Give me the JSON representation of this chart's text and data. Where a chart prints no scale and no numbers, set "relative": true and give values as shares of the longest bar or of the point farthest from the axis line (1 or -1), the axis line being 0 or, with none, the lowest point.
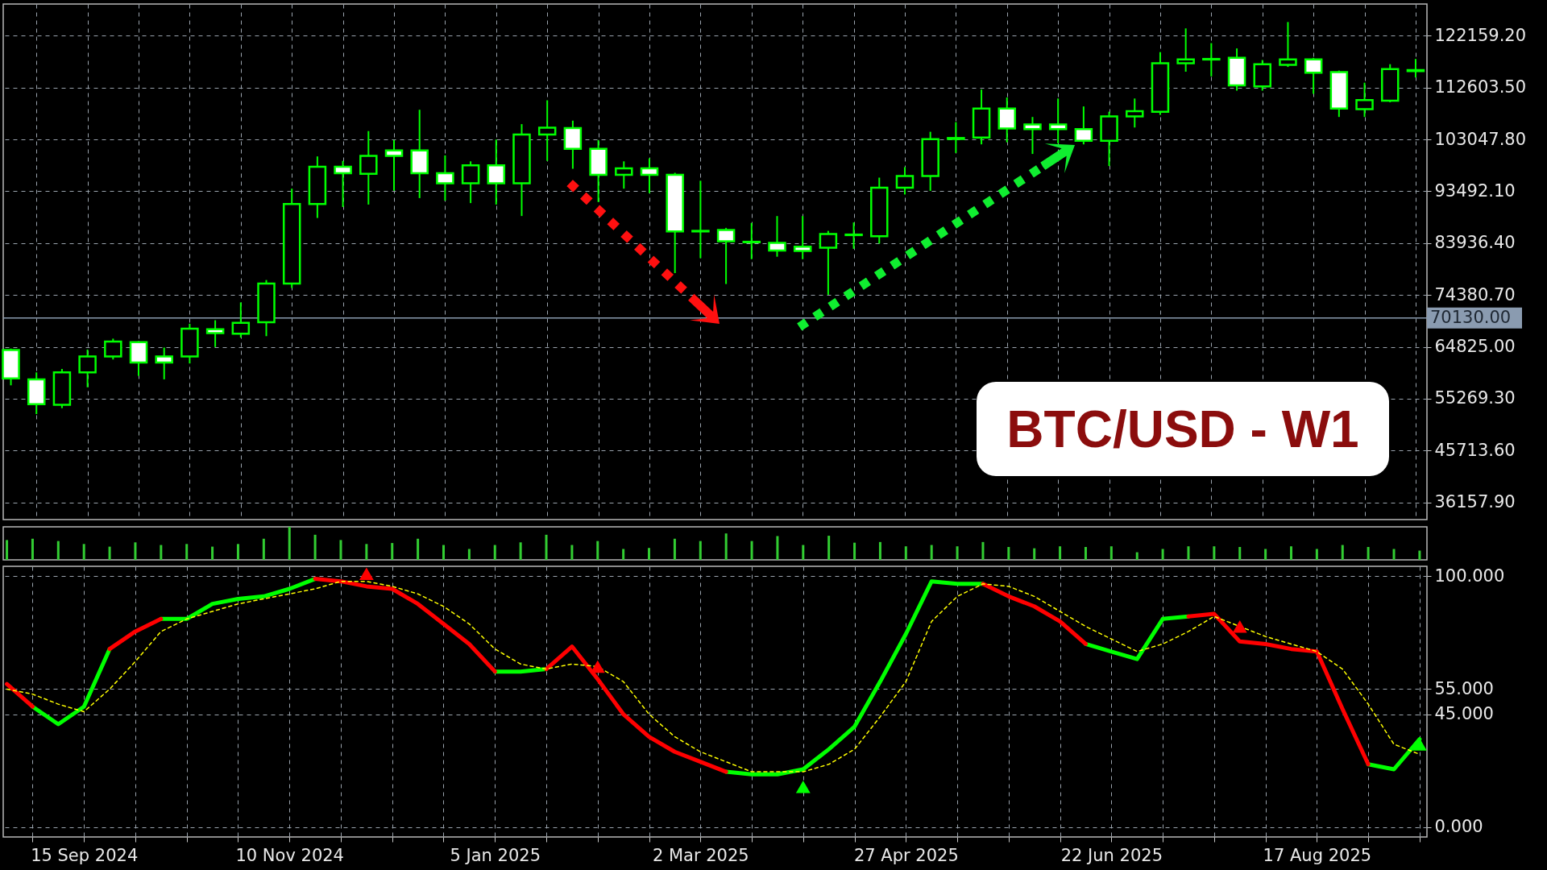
{
  "chart_data": [
    {
      "type": "candlestick",
      "title": "BTC/USD - W1",
      "color": "#00ff00",
      "tick_labels": "y",
      "grid": true,
      "x": [
        "2024-08-25",
        "2024-09-01",
        "2024-09-08",
        "2024-09-15",
        "2024-09-22",
        "2024-09-29",
        "2024-10-06",
        "2024-10-13",
        "2024-10-20",
        "2024-10-27",
        "2024-11-03",
        "2024-11-10",
        "2024-11-17",
        "2024-11-24",
        "2024-12-01",
        "2024-12-08",
        "2024-12-15",
        "2024-12-22",
        "2024-12-29",
        "2025-01-05",
        "2025-01-12",
        "2025-01-19",
        "2025-01-26",
        "2025-02-02",
        "2025-02-09",
        "2025-02-16",
        "2025-02-23",
        "2025-03-02",
        "2025-03-09",
        "2025-03-16",
        "2025-03-23",
        "2025-03-30",
        "2025-04-06",
        "2025-04-13",
        "2025-04-20",
        "2025-04-27",
        "2025-05-04",
        "2025-05-11",
        "2025-05-18",
        "2025-05-25",
        "2025-06-01",
        "2025-06-08",
        "2025-06-15",
        "2025-06-22",
        "2025-06-29",
        "2025-07-06",
        "2025-07-13",
        "2025-07-20",
        "2025-07-27",
        "2025-08-03",
        "2025-08-10",
        "2025-08-17",
        "2025-08-24",
        "2025-08-31",
        "2025-09-07",
        "2025-09-14"
      ],
      "ohlc": [
        [
          64240,
          64510,
          57740,
          59020
        ],
        [
          58840,
          60120,
          52440,
          54270
        ],
        [
          54170,
          60760,
          53530,
          60120
        ],
        [
          60120,
          64330,
          57380,
          63050
        ],
        [
          63050,
          66340,
          62500,
          65790
        ],
        [
          65700,
          65890,
          59480,
          61950
        ],
        [
          63050,
          64700,
          58840,
          61950
        ],
        [
          63050,
          69090,
          61770,
          68170
        ],
        [
          68080,
          69730,
          64790,
          67350
        ],
        [
          67260,
          73020,
          66530,
          69270
        ],
        [
          69360,
          77140,
          66800,
          76500
        ],
        [
          76500,
          93980,
          75680,
          91140
        ],
        [
          91140,
          99920,
          88580,
          98000
        ],
        [
          98000,
          99100,
          90590,
          96810
        ],
        [
          96720,
          104590,
          91050,
          100020
        ],
        [
          101020,
          102940,
          93610,
          100020
        ],
        [
          101020,
          108520,
          92240,
          96810
        ],
        [
          96810,
          100110,
          91780,
          94980
        ],
        [
          94980,
          99010,
          91320,
          98280
        ],
        [
          98280,
          103030,
          91050,
          94980
        ],
        [
          94980,
          105870,
          88940,
          103950
        ],
        [
          103950,
          110260,
          99100,
          105230
        ],
        [
          105140,
          106510,
          97640,
          101300
        ],
        [
          101300,
          102940,
          91510,
          96540
        ],
        [
          96540,
          99010,
          93980,
          97730
        ],
        [
          97730,
          99560,
          93150,
          96540
        ],
        [
          96540,
          96900,
          78420,
          86110
        ],
        [
          86200,
          95440,
          81170,
          86100
        ],
        [
          86380,
          86750,
          76410,
          84280
        ],
        [
          84190,
          87660,
          80980,
          84100
        ],
        [
          83970,
          88930,
          81440,
          82590
        ],
        [
          83290,
          88930,
          80980,
          82500
        ],
        [
          83090,
          86200,
          74430,
          85610
        ],
        [
          85420,
          87750,
          82890,
          85520
        ],
        [
          85230,
          96010,
          83860,
          94160
        ],
        [
          94160,
          97950,
          92900,
          96300
        ],
        [
          96300,
          104460,
          93570,
          103110
        ],
        [
          103130,
          106240,
          100560,
          103310
        ],
        [
          103400,
          112240,
          102140,
          108740
        ],
        [
          108740,
          110780,
          102520,
          105050
        ],
        [
          105820,
          107190,
          100380,
          104960
        ],
        [
          105820,
          110590,
          102320,
          104960
        ],
        [
          104960,
          109130,
          102140,
          102820
        ],
        [
          102820,
          108160,
          98150,
          107280
        ],
        [
          107280,
          110590,
          105250,
          108250
        ],
        [
          108160,
          119140,
          107570,
          117090
        ],
        [
          117090,
          123510,
          115530,
          117780
        ],
        [
          117880,
          120790,
          114670,
          117780
        ],
        [
          118080,
          119820,
          112040,
          113010
        ],
        [
          112830,
          117680,
          112040,
          116910
        ],
        [
          116800,
          124680,
          116410,
          117780
        ],
        [
          117780,
          118080,
          111450,
          115350
        ],
        [
          115440,
          115740,
          107190,
          108740
        ],
        [
          108630,
          113500,
          107190,
          110300
        ],
        [
          110190,
          116910,
          109900,
          116030
        ],
        [
          115640,
          117880,
          114470,
          115830
        ]
      ],
      "colors": [
        "#ffffff",
        "#ffffff",
        "#000000",
        "#000000",
        "#000000",
        "#ffffff",
        "#ffffff",
        "#000000",
        "#ffffff",
        "#000000",
        "#000000",
        "#000000",
        "#000000",
        "#ffffff",
        "#000000",
        "#ffffff",
        "#ffffff",
        "#ffffff",
        "#000000",
        "#ffffff",
        "#000000",
        "#000000",
        "#ffffff",
        "#ffffff",
        "#000000",
        "#ffffff",
        "#ffffff",
        "#ffffff",
        "#ffffff",
        "#ffffff",
        "#ffffff",
        "#ffffff",
        "#000000",
        "#000000",
        "#000000",
        "#000000",
        "#000000",
        "#000000",
        "#000000",
        "#ffffff",
        "#ffffff",
        "#ffffff",
        "#ffffff",
        "#000000",
        "#000000",
        "#000000",
        "#000000",
        "#ffffff",
        "#ffffff",
        "#000000",
        "#000000",
        "#ffffff",
        "#ffffff",
        "#000000",
        "#000000",
        "#000000"
      ],
      "xlim": [
        "2024-08-24",
        "2025-09-16"
      ],
      "xticks": [
        "2024-09-01",
        "2024-09-15",
        "2024-09-29",
        "2024-10-13",
        "2024-10-27",
        "2024-11-10",
        "2024-11-24",
        "2024-12-08",
        "2024-12-22",
        "2025-01-05",
        "2025-01-19",
        "2025-02-02",
        "2025-02-16",
        "2025-03-02",
        "2025-03-16",
        "2025-03-30",
        "2025-04-13",
        "2025-04-27",
        "2025-05-11",
        "2025-05-25",
        "2025-06-08",
        "2025-06-22",
        "2025-07-06",
        "2025-07-20",
        "2025-08-03",
        "2025-08-17",
        "2025-08-31",
        "2025-09-14"
      ],
      "ylim": [
        33000,
        128000
      ],
      "yticks": [
        {
          "value": 36157.9,
          "label": "36157.90"
        },
        {
          "value": 45713.6,
          "label": "45713.60"
        },
        {
          "value": 55269.3,
          "label": "55269.30"
        },
        {
          "value": 64825,
          "label": "64825.00"
        },
        {
          "value": 74380.7,
          "label": "74380.70"
        },
        {
          "value": 83936.4,
          "label": "83936.40"
        },
        {
          "value": 93492.1,
          "label": "93492.10"
        },
        {
          "value": 103047.8,
          "label": "103047.80"
        },
        {
          "value": 112603.5,
          "label": "112603.50"
        },
        {
          "value": 122159.2,
          "label": "122159.20"
        }
      ],
      "ref_lines": [
        {
          "axis": "y",
          "value": 70130,
          "label": "70130.00",
          "color": "#8a9bb0"
        }
      ]
    },
    {
      "type": "bar",
      "relative": true,
      "color": "#32cd32",
      "categories": [
        null,
        null,
        null,
        null,
        null,
        null,
        null,
        null,
        null,
        null,
        null,
        null,
        null,
        null,
        null,
        null,
        null,
        null,
        null,
        null,
        null,
        null,
        null,
        null,
        null,
        null,
        null,
        null,
        null,
        null,
        null,
        null,
        null,
        null,
        null,
        null,
        null,
        null,
        null,
        null,
        null,
        null,
        null,
        null,
        null,
        null,
        null,
        null,
        null,
        null,
        null,
        null,
        null,
        null,
        null,
        null
      ],
      "values": [
        0.6,
        0.64,
        0.57,
        0.48,
        0.4,
        0.53,
        0.45,
        0.48,
        0.4,
        0.48,
        0.64,
        1,
        0.76,
        0.6,
        0.48,
        0.51,
        0.64,
        0.45,
        0.33,
        0.45,
        0.53,
        0.76,
        0.45,
        0.57,
        0.33,
        0.36,
        0.64,
        0.57,
        0.8,
        0.57,
        0.72,
        0.45,
        0.73,
        0.52,
        0.54,
        0.41,
        0.45,
        0.41,
        0.54,
        0.39,
        0.35,
        0.41,
        0.39,
        0.41,
        0.23,
        0.33,
        0.41,
        0.41,
        0.39,
        0.33,
        0.41,
        0.33,
        0.45,
        0.39,
        0.33,
        0.28
      ]
    },
    {
      "type": "line",
      "grid": true,
      "x": [
        "2024-08-25",
        "2024-09-01",
        "2024-09-08",
        "2024-09-15",
        "2024-09-22",
        "2024-09-29",
        "2024-10-06",
        "2024-10-13",
        "2024-10-20",
        "2024-10-27",
        "2024-11-03",
        "2024-11-10",
        "2024-11-17",
        "2024-11-24",
        "2024-12-01",
        "2024-12-08",
        "2024-12-15",
        "2024-12-22",
        "2024-12-29",
        "2025-01-05",
        "2025-01-12",
        "2025-01-19",
        "2025-01-26",
        "2025-02-02",
        "2025-02-09",
        "2025-02-16",
        "2025-02-23",
        "2025-03-02",
        "2025-03-09",
        "2025-03-16",
        "2025-03-23",
        "2025-03-30",
        "2025-04-06",
        "2025-04-13",
        "2025-04-20",
        "2025-04-27",
        "2025-05-04",
        "2025-05-11",
        "2025-05-18",
        "2025-05-25",
        "2025-06-01",
        "2025-06-08",
        "2025-06-15",
        "2025-06-22",
        "2025-06-29",
        "2025-07-06",
        "2025-07-13",
        "2025-07-20",
        "2025-07-27",
        "2025-08-03",
        "2025-08-10",
        "2025-08-17",
        "2025-08-24",
        "2025-08-31",
        "2025-09-07",
        "2025-09-14"
      ],
      "series": [
        {
          "color": "#00ff00",
          "values": [
            null,
            48,
            41,
            48,
            71,
            null,
            83,
            83,
            89,
            91,
            92,
            95,
            99,
            null,
            null,
            null,
            null,
            null,
            null,
            62,
            62,
            63,
            null,
            null,
            null,
            null,
            null,
            null,
            22,
            21,
            21,
            23,
            31,
            40,
            58,
            77,
            98,
            97,
            97,
            null,
            null,
            null,
            73,
            70,
            67,
            83,
            84,
            null,
            null,
            null,
            null,
            null,
            null,
            25,
            23,
            35
          ]
        },
        {
          "color": "#ff0000",
          "values": [
            57,
            48,
            null,
            null,
            71,
            78,
            83,
            null,
            null,
            null,
            null,
            null,
            99,
            98,
            96,
            95,
            89,
            81,
            73,
            62,
            null,
            63,
            72,
            59,
            45,
            36,
            30,
            26,
            22,
            null,
            null,
            null,
            null,
            null,
            null,
            null,
            null,
            null,
            97,
            92,
            88,
            82,
            73,
            null,
            null,
            null,
            84,
            85,
            74,
            73,
            71,
            70,
            47,
            25,
            null,
            null
          ]
        },
        {
          "color": "#ffff00",
          "line_style": "dashed",
          "values": [
            55,
            53,
            49,
            46,
            55,
            66,
            78,
            83,
            86,
            89,
            91,
            93,
            95,
            98,
            98,
            96,
            93,
            88,
            81,
            71,
            65,
            63,
            65,
            64,
            58,
            45,
            36,
            30,
            26,
            22,
            22,
            22,
            25,
            31,
            44,
            58,
            82,
            92,
            97,
            96,
            92,
            86,
            80,
            75,
            70,
            73,
            78,
            84,
            80,
            76,
            73,
            70,
            63,
            49,
            33,
            29
          ]
        },
        {
          "type": "scatter",
          "marker": "triangle",
          "color": "#ff0000",
          "x": [
            "2024-12-01",
            "2025-02-02",
            "2025-07-27"
          ],
          "values": [
            101,
            64,
            80
          ]
        },
        {
          "type": "scatter",
          "marker": "triangle",
          "color": "#00ff00",
          "x": [
            "2025-03-30",
            "2025-09-14"
          ],
          "values": [
            16,
            33
          ]
        }
      ],
      "xlim": [
        "2024-08-24",
        "2025-09-16"
      ],
      "xticks": [
        {
          "value": "2024-09-01",
          "label": null
        },
        {
          "value": "2024-09-15",
          "label": "15 Sep 2024"
        },
        {
          "value": "2024-09-29",
          "label": null
        },
        {
          "value": "2024-10-13",
          "label": null
        },
        {
          "value": "2024-10-27",
          "label": null
        },
        {
          "value": "2024-11-10",
          "label": "10 Nov 2024"
        },
        {
          "value": "2024-11-24",
          "label": null
        },
        {
          "value": "2024-12-08",
          "label": null
        },
        {
          "value": "2024-12-22",
          "label": null
        },
        {
          "value": "2025-01-05",
          "label": "5 Jan 2025"
        },
        {
          "value": "2025-01-19",
          "label": null
        },
        {
          "value": "2025-02-02",
          "label": null
        },
        {
          "value": "2025-02-16",
          "label": null
        },
        {
          "value": "2025-03-02",
          "label": "2 Mar 2025"
        },
        {
          "value": "2025-03-16",
          "label": null
        },
        {
          "value": "2025-03-30",
          "label": null
        },
        {
          "value": "2025-04-13",
          "label": null
        },
        {
          "value": "2025-04-27",
          "label": "27 Apr 2025"
        },
        {
          "value": "2025-05-11",
          "label": null
        },
        {
          "value": "2025-05-25",
          "label": null
        },
        {
          "value": "2025-06-08",
          "label": null
        },
        {
          "value": "2025-06-22",
          "label": "22 Jun 2025"
        },
        {
          "value": "2025-07-06",
          "label": null
        },
        {
          "value": "2025-07-20",
          "label": null
        },
        {
          "value": "2025-08-03",
          "label": null
        },
        {
          "value": "2025-08-17",
          "label": "17 Aug 2025"
        },
        {
          "value": "2025-08-31",
          "label": null
        },
        {
          "value": "2025-09-14",
          "label": null
        }
      ],
      "ylim": [
        -4,
        104
      ],
      "yticks": [
        {
          "value": 0,
          "label": "0.000"
        },
        {
          "value": 45,
          "label": "45.000"
        },
        {
          "value": 55,
          "label": "55.000"
        },
        {
          "value": 100,
          "label": "100.000"
        }
      ]
    }
  ]
}
